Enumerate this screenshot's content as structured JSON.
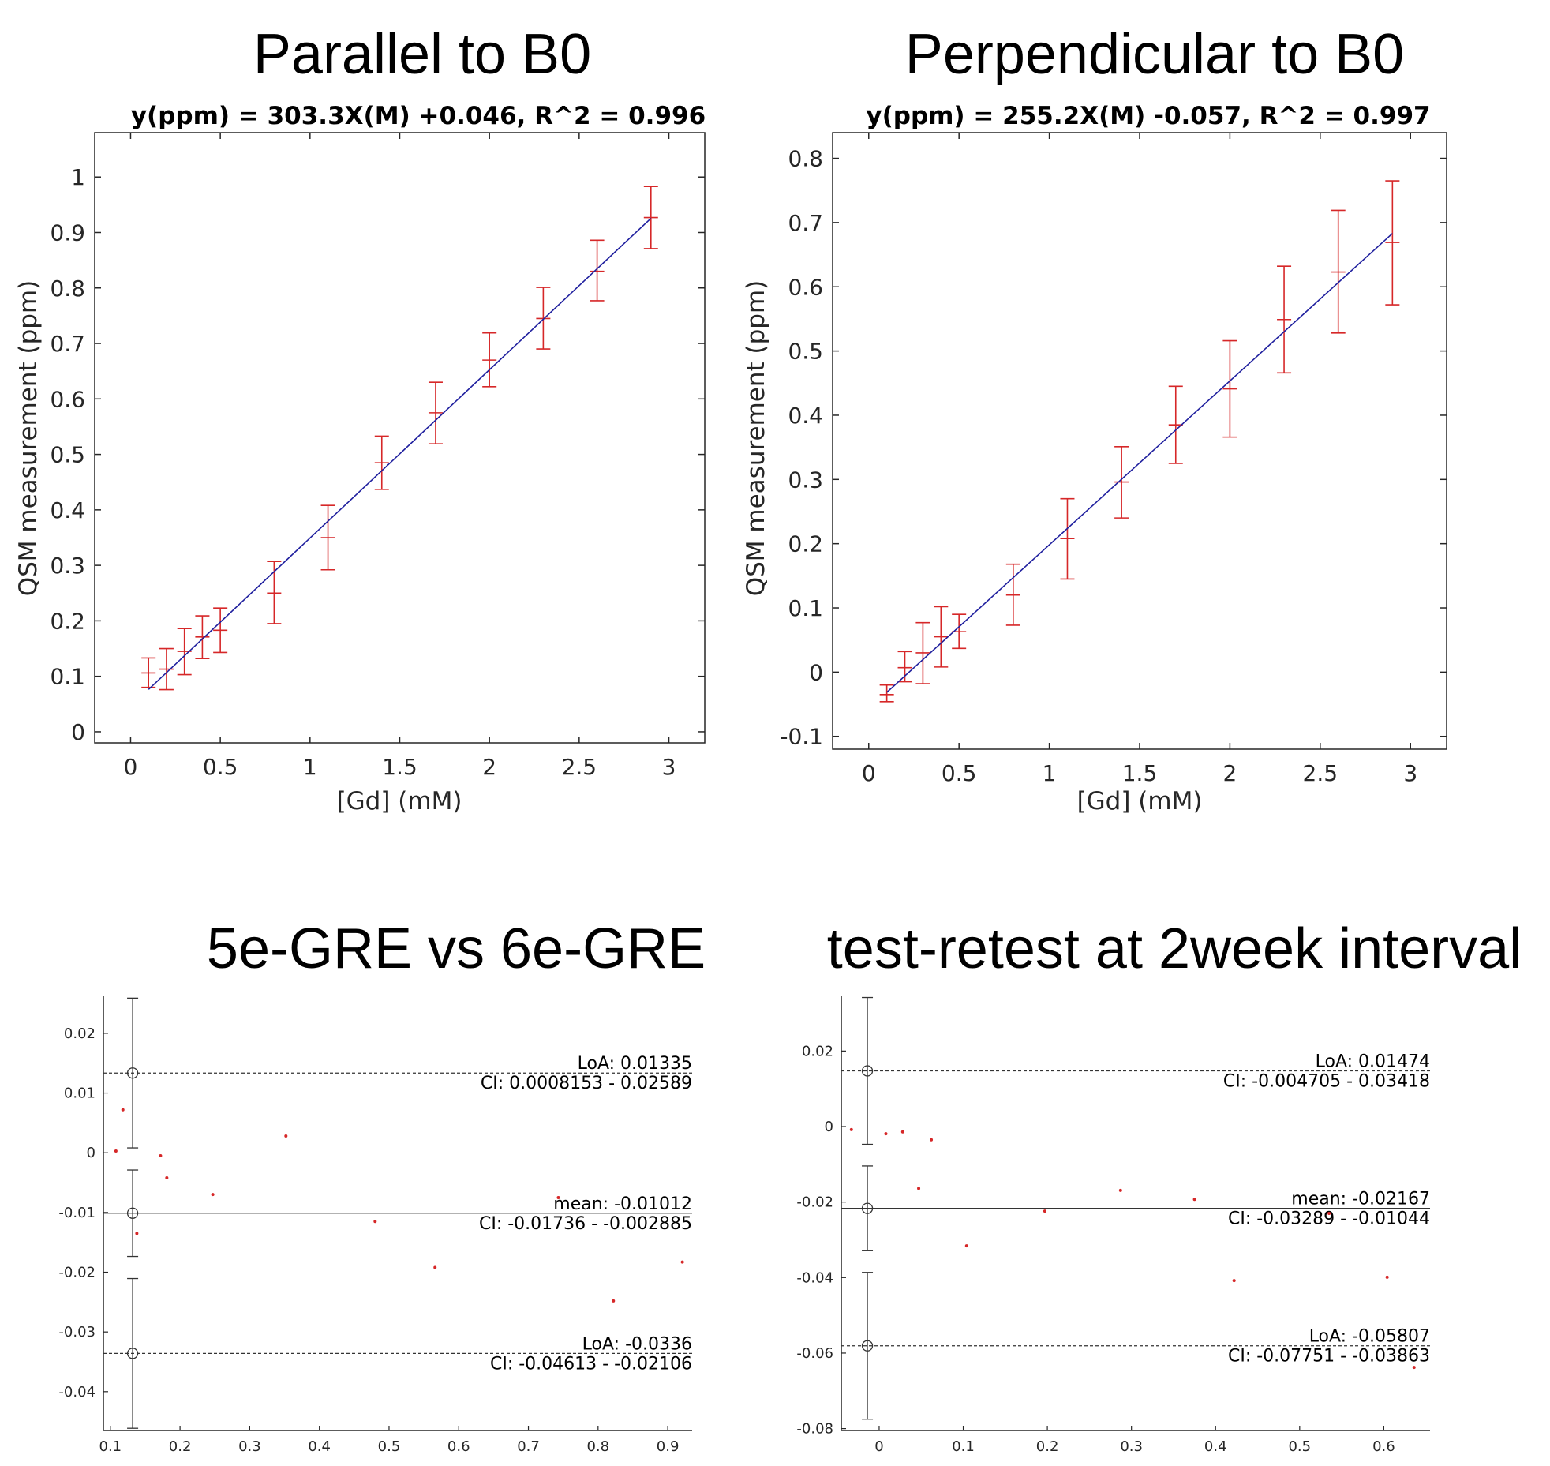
{
  "chart_data": [
    {
      "type": "scatter",
      "panel_title": "Parallel to B0",
      "title": "y(ppm) = 303.3X(M) +0.046, R^2 = 0.996",
      "xlabel": "[Gd] (mM)",
      "ylabel": "QSM measurement (ppm)",
      "xlim": [
        -0.2,
        3.2
      ],
      "ylim": [
        -0.02,
        1.08
      ],
      "xticks": [
        0,
        0.5,
        1,
        1.5,
        2,
        2.5,
        3
      ],
      "xtick_labels": [
        "0",
        "0.5",
        "1",
        "1.5",
        "2",
        "2.5",
        "3"
      ],
      "yticks": [
        0,
        0.1,
        0.2,
        0.3,
        0.4,
        0.5,
        0.6,
        0.7,
        0.8,
        0.9,
        1
      ],
      "ytick_labels": [
        "0",
        "0.1",
        "0.2",
        "0.3",
        "0.4",
        "0.5",
        "0.6",
        "0.7",
        "0.8",
        "0.9",
        "1"
      ],
      "grid": false,
      "series": [
        {
          "kind": "errorbar",
          "color": "#d62728",
          "x": [
            0.1,
            0.2,
            0.3,
            0.4,
            0.5,
            0.8,
            1.1,
            1.4,
            1.7,
            2.0,
            2.3,
            2.6,
            2.9
          ],
          "y": [
            0.106,
            0.113,
            0.145,
            0.171,
            0.183,
            0.25,
            0.35,
            0.485,
            0.575,
            0.67,
            0.745,
            0.83,
            0.927
          ],
          "lower": [
            0.08,
            0.076,
            0.103,
            0.132,
            0.143,
            0.195,
            0.292,
            0.437,
            0.519,
            0.622,
            0.69,
            0.777,
            0.871
          ],
          "upper": [
            0.133,
            0.15,
            0.186,
            0.209,
            0.223,
            0.307,
            0.408,
            0.533,
            0.63,
            0.719,
            0.801,
            0.886,
            0.983
          ]
        },
        {
          "kind": "fit-line",
          "color": "#1f1f9e",
          "slope": 0.3033,
          "intercept": 0.046,
          "x_range": [
            0.1,
            2.9
          ]
        }
      ]
    },
    {
      "type": "scatter",
      "panel_title": "Perpendicular to B0",
      "title": "y(ppm) = 255.2X(M) -0.057, R^2 = 0.997",
      "xlabel": "[Gd] (mM)",
      "ylabel": "QSM measurement (ppm)",
      "xlim": [
        -0.2,
        3.2
      ],
      "ylim": [
        -0.12,
        0.84
      ],
      "xticks": [
        0,
        0.5,
        1,
        1.5,
        2,
        2.5,
        3
      ],
      "xtick_labels": [
        "0",
        "0.5",
        "1",
        "1.5",
        "2",
        "2.5",
        "3"
      ],
      "yticks": [
        -0.1,
        0,
        0.1,
        0.2,
        0.3,
        0.4,
        0.5,
        0.6,
        0.7,
        0.8
      ],
      "ytick_labels": [
        "-0.1",
        "0",
        "0.1",
        "0.2",
        "0.3",
        "0.4",
        "0.5",
        "0.6",
        "0.7",
        "0.8"
      ],
      "grid": false,
      "series": [
        {
          "kind": "errorbar",
          "color": "#d62728",
          "x": [
            0.1,
            0.2,
            0.3,
            0.4,
            0.5,
            0.8,
            1.1,
            1.4,
            1.7,
            2.0,
            2.3,
            2.6,
            2.9
          ],
          "y": [
            -0.035,
            0.007,
            0.03,
            0.055,
            0.063,
            0.12,
            0.208,
            0.296,
            0.385,
            0.441,
            0.549,
            0.623,
            0.669
          ],
          "lower": [
            -0.046,
            -0.015,
            -0.018,
            0.008,
            0.037,
            0.073,
            0.145,
            0.24,
            0.325,
            0.366,
            0.466,
            0.528,
            0.572
          ],
          "upper": [
            -0.02,
            0.032,
            0.077,
            0.102,
            0.09,
            0.168,
            0.27,
            0.351,
            0.445,
            0.516,
            0.632,
            0.719,
            0.765
          ]
        },
        {
          "kind": "fit-line",
          "color": "#1f1f9e",
          "slope": 0.2552,
          "intercept": -0.057,
          "x_range": [
            0.1,
            2.9
          ]
        }
      ]
    },
    {
      "type": "scatter",
      "subtype": "bland-altman",
      "panel_title": "5e-GRE vs 6e-GRE",
      "xlim": [
        0.09,
        0.935
      ],
      "ylim": [
        -0.0465,
        0.0262
      ],
      "xticks": [
        0.1,
        0.2,
        0.3,
        0.4,
        0.5,
        0.6,
        0.7,
        0.8,
        0.9
      ],
      "xtick_labels": [
        "0.1",
        "0.2",
        "0.3",
        "0.4",
        "0.5",
        "0.6",
        "0.7",
        "0.8",
        "0.9"
      ],
      "yticks": [
        0.02,
        0.01,
        0,
        -0.01,
        -0.02,
        -0.03,
        -0.04
      ],
      "ytick_labels": [
        "0.02",
        "0.01",
        "0",
        "-0.01",
        "-0.02",
        "-0.03",
        "-0.04"
      ],
      "grid": false,
      "ci_x": 0.132,
      "points": {
        "color": "#d62728",
        "x": [
          0.108,
          0.118,
          0.138,
          0.172,
          0.181,
          0.247,
          0.352,
          0.48,
          0.566,
          0.743,
          0.822,
          0.921
        ],
        "y": [
          0.0003,
          0.0072,
          -0.0135,
          -0.0005,
          -0.0042,
          -0.007,
          0.0028,
          -0.0115,
          -0.0192,
          -0.0075,
          -0.0248,
          -0.0183
        ]
      },
      "lines": [
        {
          "role": "upper-loa",
          "style": "dashed",
          "value": 0.01335,
          "ci": [
            0.0008153,
            0.02589
          ],
          "label": "LoA: 0.01335",
          "ci_label": "CI: 0.0008153 - 0.02589"
        },
        {
          "role": "mean",
          "style": "solid",
          "value": -0.01012,
          "ci": [
            -0.01736,
            -0.002885
          ],
          "label": "mean: -0.01012",
          "ci_label": "CI: -0.01736 - -0.002885"
        },
        {
          "role": "lower-loa",
          "style": "dashed",
          "value": -0.0336,
          "ci": [
            -0.04613,
            -0.02106
          ],
          "label": "LoA: -0.0336",
          "ci_label": "CI: -0.04613 - -0.02106"
        }
      ]
    },
    {
      "type": "scatter",
      "subtype": "bland-altman",
      "panel_title": "test-retest at 2week interval",
      "xlim": [
        -0.045,
        0.655
      ],
      "ylim": [
        -0.0805,
        0.0345
      ],
      "xticks": [
        0,
        0.1,
        0.2,
        0.3,
        0.4,
        0.5,
        0.6
      ],
      "xtick_labels": [
        "0",
        "0.1",
        "0.2",
        "0.3",
        "0.4",
        "0.5",
        "0.6"
      ],
      "yticks": [
        0.02,
        0,
        -0.02,
        -0.04,
        -0.06,
        -0.08
      ],
      "ytick_labels": [
        "0.02",
        "0",
        "-0.02",
        "-0.04",
        "-0.06",
        "-0.08"
      ],
      "grid": false,
      "ci_x": -0.014,
      "points": {
        "color": "#d62728",
        "x": [
          -0.033,
          0.008,
          0.028,
          0.047,
          0.062,
          0.104,
          0.197,
          0.287,
          0.375,
          0.422,
          0.535,
          0.604,
          0.636
        ],
        "y": [
          -0.0008,
          -0.0019,
          -0.0014,
          -0.0164,
          -0.0035,
          -0.0316,
          -0.0224,
          -0.0169,
          -0.0193,
          -0.0408,
          -0.023,
          -0.0399,
          -0.0638
        ]
      },
      "lines": [
        {
          "role": "upper-loa",
          "style": "dashed",
          "value": 0.01474,
          "ci": [
            -0.004705,
            0.03418
          ],
          "label": "LoA: 0.01474",
          "ci_label": "CI: -0.004705 - 0.03418"
        },
        {
          "role": "mean",
          "style": "solid",
          "value": -0.02167,
          "ci": [
            -0.03289,
            -0.01044
          ],
          "label": "mean: -0.02167",
          "ci_label": "CI: -0.03289 - -0.01044"
        },
        {
          "role": "lower-loa",
          "style": "dashed",
          "value": -0.05807,
          "ci": [
            -0.07751,
            -0.03863
          ],
          "label": "LoA: -0.05807",
          "ci_label": "CI: -0.07751 - -0.03863"
        }
      ]
    }
  ]
}
